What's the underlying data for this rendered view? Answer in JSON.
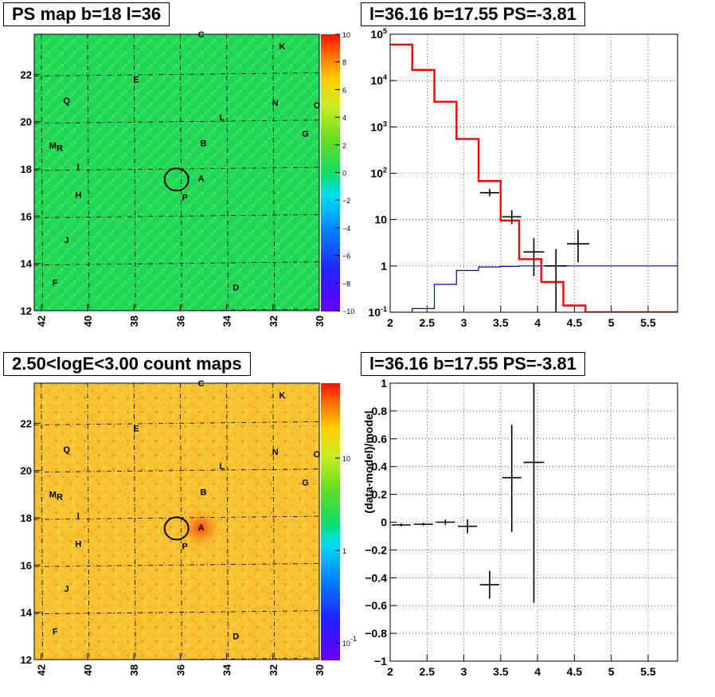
{
  "panels": {
    "tl": {
      "title": "PS map b=18 l=36"
    },
    "tr": {
      "title": "l=36.16 b=17.55 PS=-3.81"
    },
    "bl": {
      "title": "2.50<logE<3.00 count maps"
    },
    "br": {
      "title": "l=36.16 b=17.55 PS=-3.81"
    }
  },
  "chart_data": [
    {
      "type": "heatmap",
      "title": "PS map b=18 l=36",
      "x_ticks": [
        "42",
        "40",
        "38",
        "36",
        "34",
        "32",
        "30"
      ],
      "y_ticks": [
        "12",
        "14",
        "16",
        "18",
        "20",
        "22"
      ],
      "xlim": [
        42.3,
        30.0
      ],
      "ylim": [
        12.0,
        23.7
      ],
      "colorbar_ticks": [
        "10",
        "8",
        "6",
        "4",
        "2",
        "0",
        "−2",
        "−4",
        "−6",
        "−8",
        "−10"
      ],
      "colorbar_range": [
        -10,
        10
      ],
      "dominant_value": 0.5,
      "circle": {
        "l": 36.16,
        "b": 17.55
      },
      "sources": [
        {
          "label": "C",
          "l": 35.1,
          "b": 23.7
        },
        {
          "label": "K",
          "l": 31.6,
          "b": 23.2
        },
        {
          "label": "E",
          "l": 37.9,
          "b": 21.8
        },
        {
          "label": "Q",
          "l": 40.9,
          "b": 20.9
        },
        {
          "label": "N",
          "l": 31.9,
          "b": 20.8
        },
        {
          "label": "O",
          "l": 30.1,
          "b": 20.7
        },
        {
          "label": "L",
          "l": 34.2,
          "b": 20.2
        },
        {
          "label": "G",
          "l": 30.6,
          "b": 19.5
        },
        {
          "label": "B",
          "l": 35.0,
          "b": 19.1
        },
        {
          "label": "M",
          "l": 41.5,
          "b": 19.0
        },
        {
          "label": "R",
          "l": 41.2,
          "b": 18.9
        },
        {
          "label": "I",
          "l": 40.4,
          "b": 18.1
        },
        {
          "label": "A",
          "l": 35.1,
          "b": 17.6
        },
        {
          "label": "P",
          "l": 35.8,
          "b": 16.8
        },
        {
          "label": "H",
          "l": 40.4,
          "b": 16.9
        },
        {
          "label": "J",
          "l": 40.9,
          "b": 15.0
        },
        {
          "label": "F",
          "l": 41.4,
          "b": 13.2
        },
        {
          "label": "D",
          "l": 33.6,
          "b": 13.0
        }
      ]
    },
    {
      "type": "line",
      "title": "l=36.16 b=17.55 PS=-3.81",
      "x_ticks": [
        "2",
        "2.5",
        "3",
        "3.5",
        "4",
        "4.5",
        "5",
        "5.5"
      ],
      "y_ticks": [
        "10^-1",
        "1",
        "10",
        "10^2",
        "10^3",
        "10^4",
        "10^5"
      ],
      "xlim": [
        2.0,
        5.9
      ],
      "ylim": [
        0.1,
        100000
      ],
      "yscale": "log",
      "grid": true,
      "series": [
        {
          "color": "#ff0000",
          "step": true,
          "bin_edges": [
            2.0,
            2.3,
            2.6,
            2.9,
            3.2,
            3.5,
            3.75,
            4.05,
            4.35,
            4.65,
            4.95,
            5.9
          ],
          "values": [
            60000,
            17000,
            3500,
            550,
            68,
            9.5,
            1.4,
            0.45,
            0.14,
            0.1,
            0.1
          ]
        },
        {
          "color": "#0000cc",
          "step": true,
          "bin_edges": [
            2.0,
            2.3,
            2.6,
            2.9,
            3.2,
            3.5,
            3.75,
            4.05,
            4.35,
            4.65,
            4.95,
            5.9
          ],
          "values": [
            0.1,
            0.12,
            0.4,
            0.8,
            0.95,
            0.98,
            1.0,
            1.0,
            1.0,
            1.0,
            1.0
          ]
        },
        {
          "color": "#000000",
          "type": "errorbar",
          "points": [
            {
              "x": 3.35,
              "y": 38,
              "xerr": 0.13,
              "ylo": 32,
              "yhi": 46
            },
            {
              "x": 3.65,
              "y": 11.5,
              "xerr": 0.13,
              "ylo": 8,
              "yhi": 16
            },
            {
              "x": 3.95,
              "y": 2.0,
              "xerr": 0.14,
              "ylo": 0.6,
              "yhi": 4.0
            },
            {
              "x": 4.25,
              "y": 1.0,
              "xerr": 0.15,
              "ylo": 0.1,
              "yhi": 2.3
            },
            {
              "x": 4.55,
              "y": 3.0,
              "xerr": 0.15,
              "ylo": 1.2,
              "yhi": 6.0
            }
          ]
        }
      ]
    },
    {
      "type": "heatmap",
      "title": "2.50<logE<3.00 count maps",
      "x_ticks": [
        "42",
        "40",
        "38",
        "36",
        "34",
        "32",
        "30"
      ],
      "y_ticks": [
        "12",
        "14",
        "16",
        "18",
        "20",
        "22"
      ],
      "xlim": [
        42.3,
        30.0
      ],
      "ylim": [
        12.0,
        23.7
      ],
      "colorbar_ticks": [
        "10",
        "1",
        "10^-1"
      ],
      "colorbar_scale": "log",
      "circle": {
        "l": 36.16,
        "b": 17.55
      }
    },
    {
      "type": "scatter",
      "title": "l=36.16 b=17.55 PS=-3.81",
      "ylabel": "(data-model)/model",
      "x_ticks": [
        "2",
        "2.5",
        "3",
        "3.5",
        "4",
        "4.5",
        "5",
        "5.5"
      ],
      "y_ticks": [
        "−1",
        "−0.8",
        "−0.6",
        "−0.4",
        "−0.2",
        "0",
        "0.2",
        "0.4",
        "0.6",
        "0.8",
        "1"
      ],
      "xlim": [
        2.0,
        5.9
      ],
      "ylim": [
        -1.0,
        1.0
      ],
      "grid": true,
      "points": [
        {
          "x": 2.15,
          "y": -0.02,
          "xerr": 0.13,
          "yerr_lo": 0.01,
          "yerr_hi": 0.01
        },
        {
          "x": 2.45,
          "y": -0.015,
          "xerr": 0.13,
          "yerr_lo": 0.01,
          "yerr_hi": 0.01
        },
        {
          "x": 2.75,
          "y": 0.0,
          "xerr": 0.13,
          "yerr_lo": 0.02,
          "yerr_hi": 0.02
        },
        {
          "x": 3.05,
          "y": -0.03,
          "xerr": 0.13,
          "yerr_lo": 0.05,
          "yerr_hi": 0.05
        },
        {
          "x": 3.35,
          "y": -0.45,
          "xerr": 0.13,
          "yerr_lo": 0.1,
          "yerr_hi": 0.1
        },
        {
          "x": 3.65,
          "y": 0.32,
          "xerr": 0.13,
          "yerr_lo": 0.39,
          "yerr_hi": 0.38
        },
        {
          "x": 3.95,
          "y": 0.43,
          "xerr": 0.14,
          "yerr_lo": 1.01,
          "yerr_hi": 0.6
        }
      ]
    }
  ]
}
